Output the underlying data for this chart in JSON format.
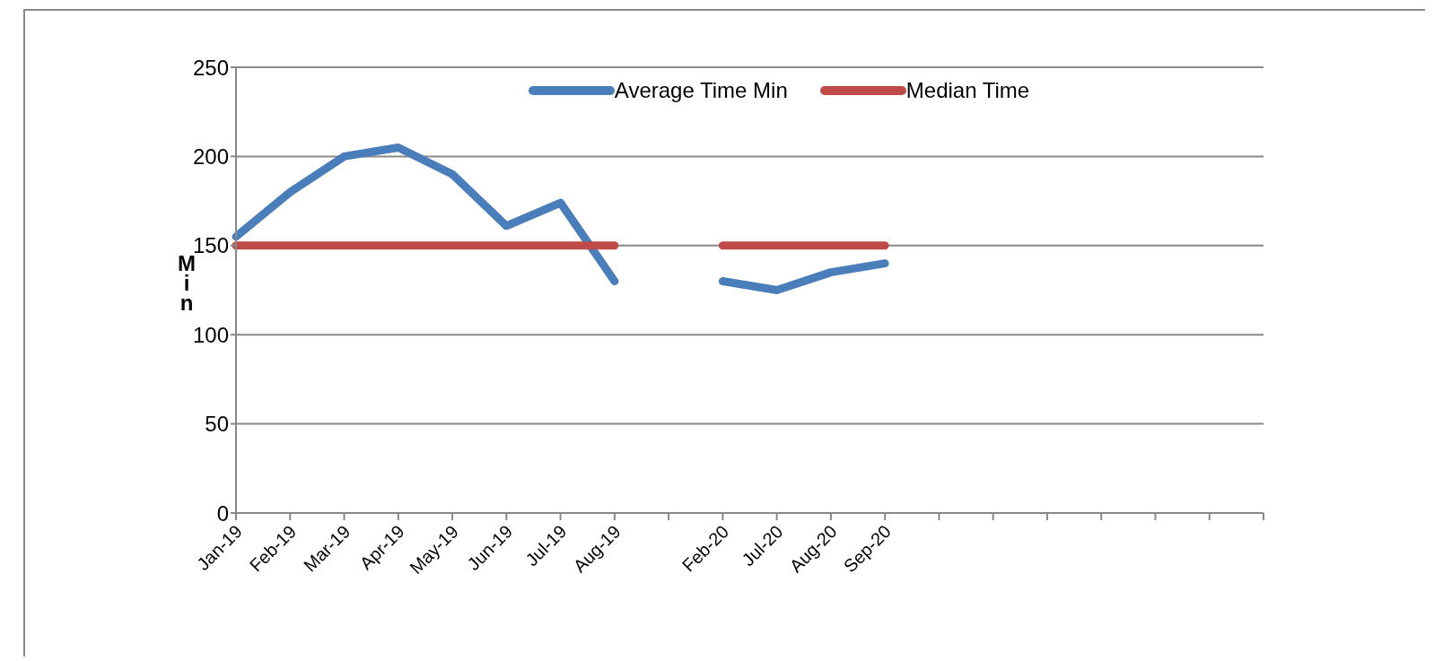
{
  "chart_data": {
    "type": "line",
    "ylabel": "Min",
    "categories": [
      "Jan-19",
      "Feb-19",
      "Mar-19",
      "Apr-19",
      "May-19",
      "Jun-19",
      "Jul-19",
      "Aug-19",
      null,
      "Feb-20",
      "Jul-20",
      "Aug-20",
      "Sep-20",
      null,
      null,
      null,
      null,
      null,
      null,
      null
    ],
    "series": [
      {
        "name": "Average Time Min",
        "color": "#4a7ebb",
        "values": [
          155,
          180,
          200,
          205,
          190,
          161,
          174,
          130,
          null,
          130,
          125,
          135,
          140,
          null,
          null,
          null,
          null,
          null,
          null,
          null
        ]
      },
      {
        "name": "Median Time",
        "color": "#be4b48",
        "values": [
          150,
          150,
          150,
          150,
          150,
          150,
          150,
          150,
          null,
          150,
          150,
          150,
          150,
          null,
          null,
          null,
          null,
          null,
          null,
          null
        ]
      }
    ],
    "ylim": [
      0,
      250
    ],
    "yticks": [
      0,
      50,
      100,
      150,
      200,
      250
    ],
    "grid": "y",
    "legend": "top",
    "marker": "none",
    "line_style": "solid"
  }
}
